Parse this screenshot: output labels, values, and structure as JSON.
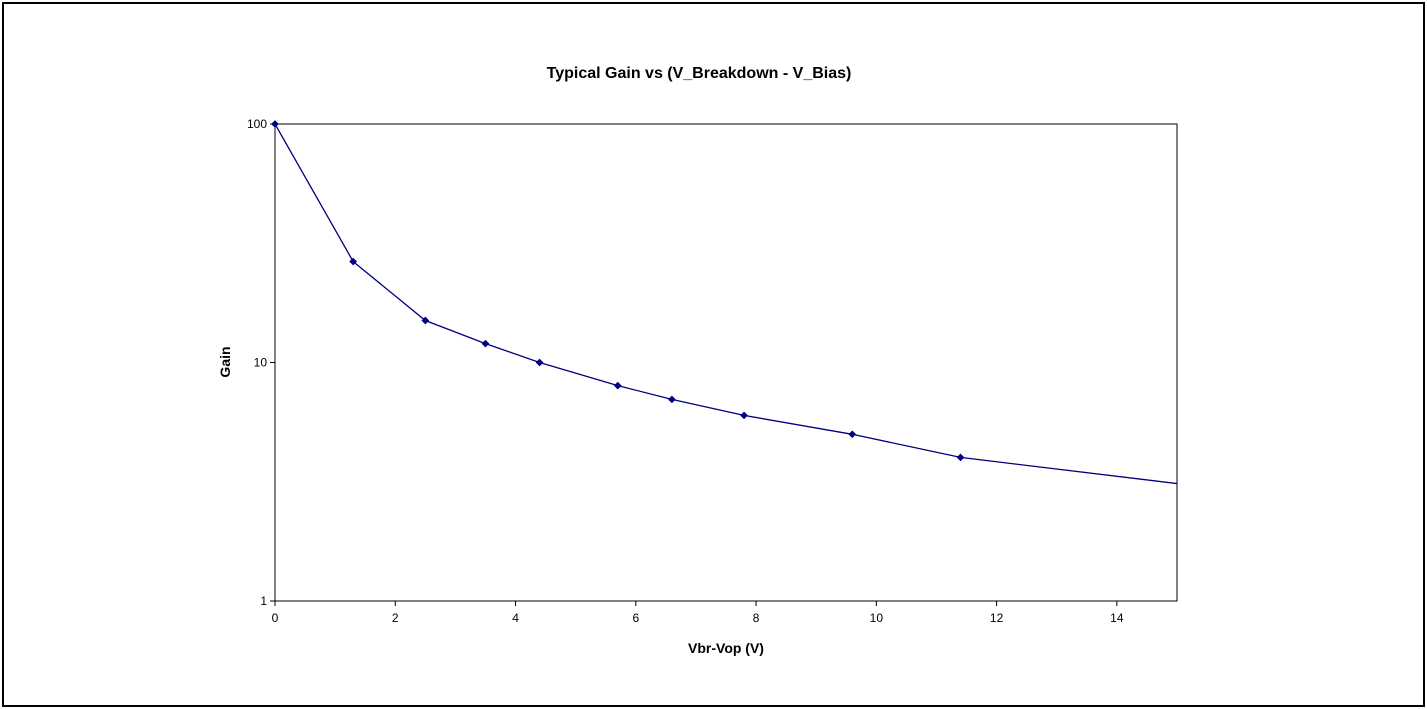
{
  "chart_data": {
    "type": "line",
    "title": "Typical Gain vs (V_Breakdown - V_Bias)",
    "xlabel": "Vbr-Vop (V)",
    "ylabel": "Gain",
    "xlim": [
      0,
      15
    ],
    "ylim": [
      1,
      100
    ],
    "yscale": "log",
    "grid": false,
    "legend": "none",
    "x_ticks": [
      "0",
      "2",
      "4",
      "6",
      "8",
      "10",
      "12",
      "14"
    ],
    "y_ticks": [
      "1",
      "10",
      "100"
    ],
    "series": [
      {
        "color": "#000080",
        "x": [
          0,
          1.3,
          2.5,
          3.5,
          4.4,
          5.7,
          6.6,
          7.8,
          9.6,
          11.4,
          15.5
        ],
        "y": [
          100,
          26.5,
          15,
          12,
          10,
          8,
          7,
          6,
          5,
          4,
          3
        ],
        "markers": [
          true,
          true,
          true,
          true,
          true,
          true,
          true,
          true,
          true,
          true,
          false
        ]
      }
    ]
  }
}
